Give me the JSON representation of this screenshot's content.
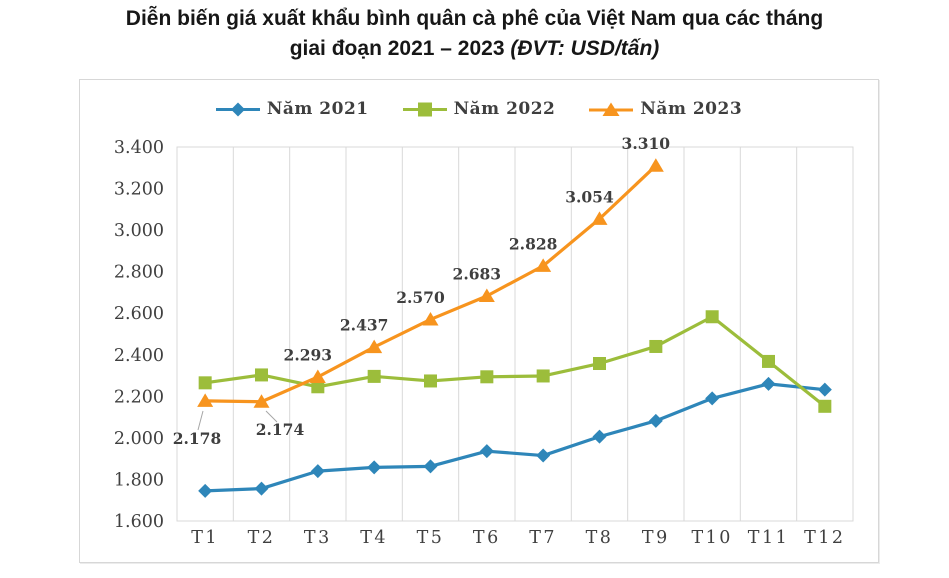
{
  "title": {
    "line1": "Diễn biến giá xuất khẩu bình quân cà phê của Việt Nam qua các tháng",
    "line2_bold": "giai đoạn 2021 – 2023 ",
    "line2_italic": "(ĐVT: USD/tấn)"
  },
  "chart_data": {
    "type": "line",
    "title": "Diễn biến giá xuất khẩu bình quân cà phê của Việt Nam qua các tháng giai đoạn 2021 – 2023",
    "unit_label": "ĐVT: USD/tấn",
    "categories": [
      "T1",
      "T2",
      "T3",
      "T4",
      "T5",
      "T6",
      "T7",
      "T8",
      "T9",
      "T10",
      "T11",
      "T12"
    ],
    "series": [
      {
        "name": "Năm 2021",
        "color": "#2E86B9",
        "marker": "diamond",
        "values": [
          1745,
          1756,
          1840,
          1858,
          1863,
          1936,
          1915,
          2006,
          2082,
          2190,
          2260,
          2232
        ],
        "data_labels": false
      },
      {
        "name": "Năm 2022",
        "color": "#9CBD3B",
        "marker": "square",
        "values": [
          2265,
          2303,
          2246,
          2296,
          2274,
          2294,
          2298,
          2358,
          2440,
          2583,
          2368,
          2152
        ],
        "data_labels": false
      },
      {
        "name": "Năm 2023",
        "color": "#F7941E",
        "marker": "triangle",
        "values": [
          2178,
          2174,
          2293,
          2437,
          2570,
          2683,
          2828,
          3054,
          3310
        ],
        "data_labels": true,
        "shown_labels": [
          "2.178",
          "2.174",
          "2.293",
          "2.437",
          "2.570",
          "2.683",
          "2.828",
          "3.054",
          "3.310"
        ]
      }
    ],
    "ylim": [
      1600,
      3400
    ],
    "ytick_step": 200,
    "ytick_labels": [
      "1.600",
      "1.800",
      "2.000",
      "2.200",
      "2.400",
      "2.600",
      "2.800",
      "3.000",
      "3.200",
      "3.400"
    ],
    "number_format": "dot-thousands",
    "grid": "vertical-only",
    "legend_position": "top",
    "colors": {
      "gridline": "#D9D9D9",
      "plot_border": "#D9D9D9",
      "axis_text": "#404040",
      "data_label_text": "#3F3F3F",
      "callout_line": "#A6A6A6"
    }
  }
}
